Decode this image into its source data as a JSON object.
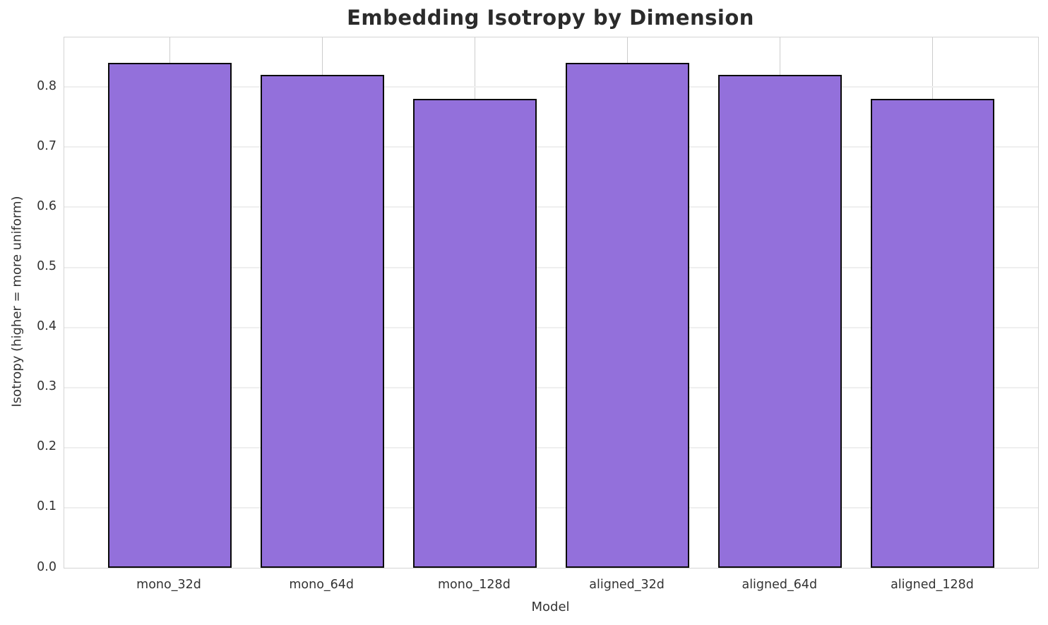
{
  "chart_data": {
    "type": "bar",
    "title": "Embedding Isotropy by Dimension",
    "xlabel": "Model",
    "ylabel": "Isotropy (higher = more uniform)",
    "categories": [
      "mono_32d",
      "mono_64d",
      "mono_128d",
      "aligned_32d",
      "aligned_64d",
      "aligned_128d"
    ],
    "values": [
      0.84,
      0.82,
      0.78,
      0.84,
      0.82,
      0.78
    ],
    "ylim": [
      0,
      0.8825
    ],
    "yticks": [
      0.0,
      0.1,
      0.2,
      0.3,
      0.4,
      0.5,
      0.6,
      0.7,
      0.8
    ],
    "ytick_labels": [
      "0.0",
      "0.1",
      "0.2",
      "0.3",
      "0.4",
      "0.5",
      "0.6",
      "0.7",
      "0.8"
    ],
    "grid": true,
    "legend": "none",
    "bar_color": "#9370DB",
    "bar_edge_color": "#0a0a0a",
    "hgrid_color": "#efefef",
    "vgrid_color": "#cccccc",
    "spine_color": "#d4d4d4",
    "text_color": "#333333",
    "title_color": "#2b2b2b"
  }
}
